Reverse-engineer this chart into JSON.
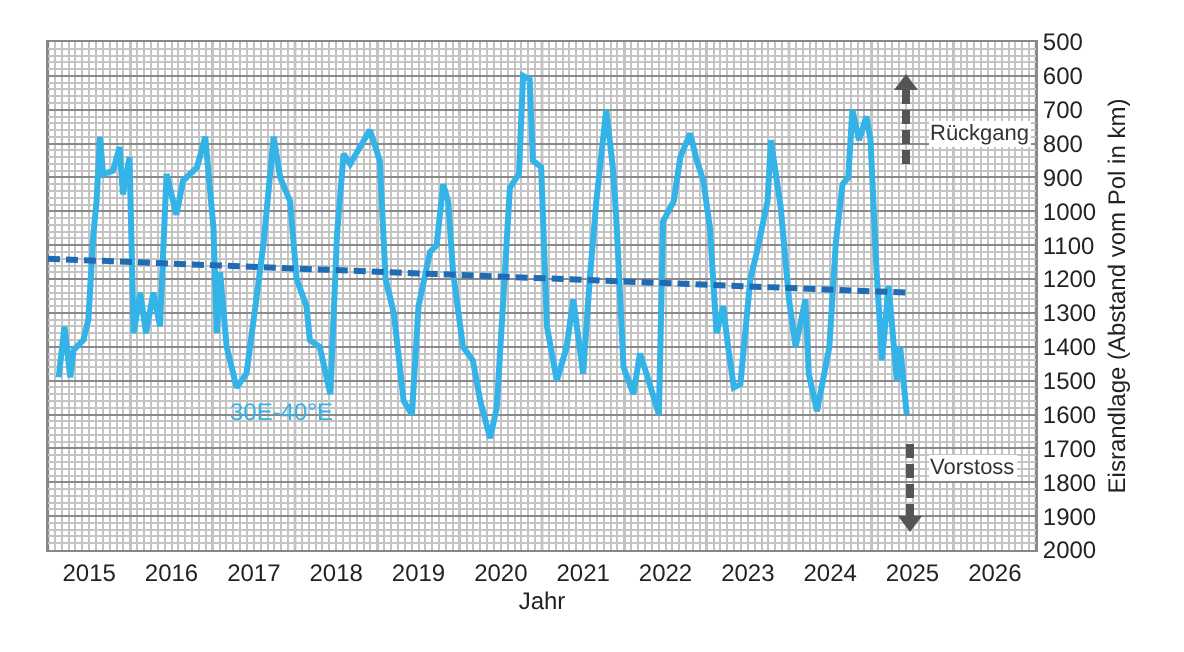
{
  "chart_data": {
    "type": "line",
    "xlabel": "Jahr",
    "ylabel": "Eisrandlage (Abstand vom Pol in km)",
    "xlim": [
      2015,
      2027
    ],
    "xticks": [
      {
        "value": 2015.5,
        "label": "2015"
      },
      {
        "value": 2016.5,
        "label": "2016"
      },
      {
        "value": 2017.5,
        "label": "2017"
      },
      {
        "value": 2018.5,
        "label": "2018"
      },
      {
        "value": 2019.5,
        "label": "2019"
      },
      {
        "value": 2020.5,
        "label": "2020"
      },
      {
        "value": 2021.5,
        "label": "2021"
      },
      {
        "value": 2022.5,
        "label": "2022"
      },
      {
        "value": 2023.5,
        "label": "2023"
      },
      {
        "value": 2024.5,
        "label": "2024"
      },
      {
        "value": 2025.5,
        "label": "2025"
      },
      {
        "value": 2026.5,
        "label": "2026"
      }
    ],
    "ylim": [
      2000,
      500
    ],
    "yticks": [
      500,
      600,
      700,
      800,
      900,
      1000,
      1100,
      1200,
      1300,
      1400,
      1500,
      1600,
      1700,
      1800,
      1900,
      2000
    ],
    "grid": true,
    "legend": false,
    "marker": "none",
    "annotations": [
      "Rückgang",
      "Vorstoss"
    ],
    "series": [
      {
        "name": "30E-40°E",
        "color": "#33b3e8",
        "line_style": "solid",
        "x": [
          2015.13,
          2015.2,
          2015.27,
          2015.31,
          2015.43,
          2015.49,
          2015.55,
          2015.59,
          2015.63,
          2015.67,
          2015.79,
          2015.87,
          2015.91,
          2015.99,
          2016.04,
          2016.12,
          2016.19,
          2016.28,
          2016.36,
          2016.44,
          2016.56,
          2016.64,
          2016.81,
          2016.91,
          2017.01,
          2017.05,
          2017.09,
          2017.17,
          2017.29,
          2017.41,
          2017.53,
          2017.62,
          2017.74,
          2017.82,
          2017.94,
          2018.02,
          2018.14,
          2018.18,
          2018.3,
          2018.43,
          2018.51,
          2018.59,
          2018.67,
          2018.79,
          2018.91,
          2019.03,
          2019.1,
          2019.2,
          2019.32,
          2019.42,
          2019.5,
          2019.64,
          2019.72,
          2019.8,
          2019.86,
          2019.92,
          2020.04,
          2020.16,
          2020.25,
          2020.37,
          2020.45,
          2020.53,
          2020.61,
          2020.72,
          2020.77,
          2020.85,
          2020.89,
          2020.99,
          2021.06,
          2021.18,
          2021.3,
          2021.38,
          2021.5,
          2021.58,
          2021.66,
          2021.78,
          2021.86,
          2021.9,
          2021.99,
          2022.11,
          2022.19,
          2022.27,
          2022.42,
          2022.47,
          2022.6,
          2022.68,
          2022.8,
          2022.88,
          2022.96,
          2023.04,
          2023.12,
          2023.2,
          2023.26,
          2023.33,
          2023.41,
          2023.53,
          2023.61,
          2023.74,
          2023.78,
          2023.9,
          2024,
          2024.08,
          2024.2,
          2024.24,
          2024.34,
          2024.49,
          2024.57,
          2024.65,
          2024.72,
          2024.77,
          2024.85,
          2024.94,
          2024.99,
          2025.06,
          2025.13,
          2025.21,
          2025.31,
          2025.35,
          2025.43
        ],
        "values": [
          1490,
          1340,
          1490,
          1410,
          1380,
          1320,
          1070,
          970,
          780,
          890,
          880,
          810,
          950,
          840,
          1360,
          1240,
          1360,
          1240,
          1340,
          890,
          1010,
          910,
          870,
          780,
          1050,
          1360,
          1180,
          1400,
          1520,
          1480,
          1260,
          1090,
          780,
          900,
          970,
          1200,
          1280,
          1380,
          1400,
          1540,
          1070,
          830,
          860,
          810,
          760,
          850,
          1200,
          1300,
          1560,
          1600,
          1280,
          1120,
          1100,
          920,
          970,
          1180,
          1400,
          1440,
          1560,
          1670,
          1580,
          1260,
          930,
          890,
          600,
          610,
          850,
          870,
          1340,
          1500,
          1400,
          1260,
          1480,
          1200,
          970,
          700,
          870,
          1010,
          1460,
          1540,
          1420,
          1480,
          1600,
          1030,
          970,
          840,
          770,
          850,
          910,
          1050,
          1360,
          1280,
          1400,
          1520,
          1510,
          1200,
          1120,
          970,
          790,
          990,
          1260,
          1400,
          1260,
          1480,
          1590,
          1400,
          1090,
          920,
          900,
          700,
          790,
          720,
          790,
          1160,
          1440,
          1220,
          1500,
          1400,
          1600
        ]
      },
      {
        "color": "#1f6cb5",
        "line_style": "dashed",
        "x": [
          2015,
          2025.43
        ],
        "values": [
          1140,
          1240
        ]
      }
    ]
  }
}
